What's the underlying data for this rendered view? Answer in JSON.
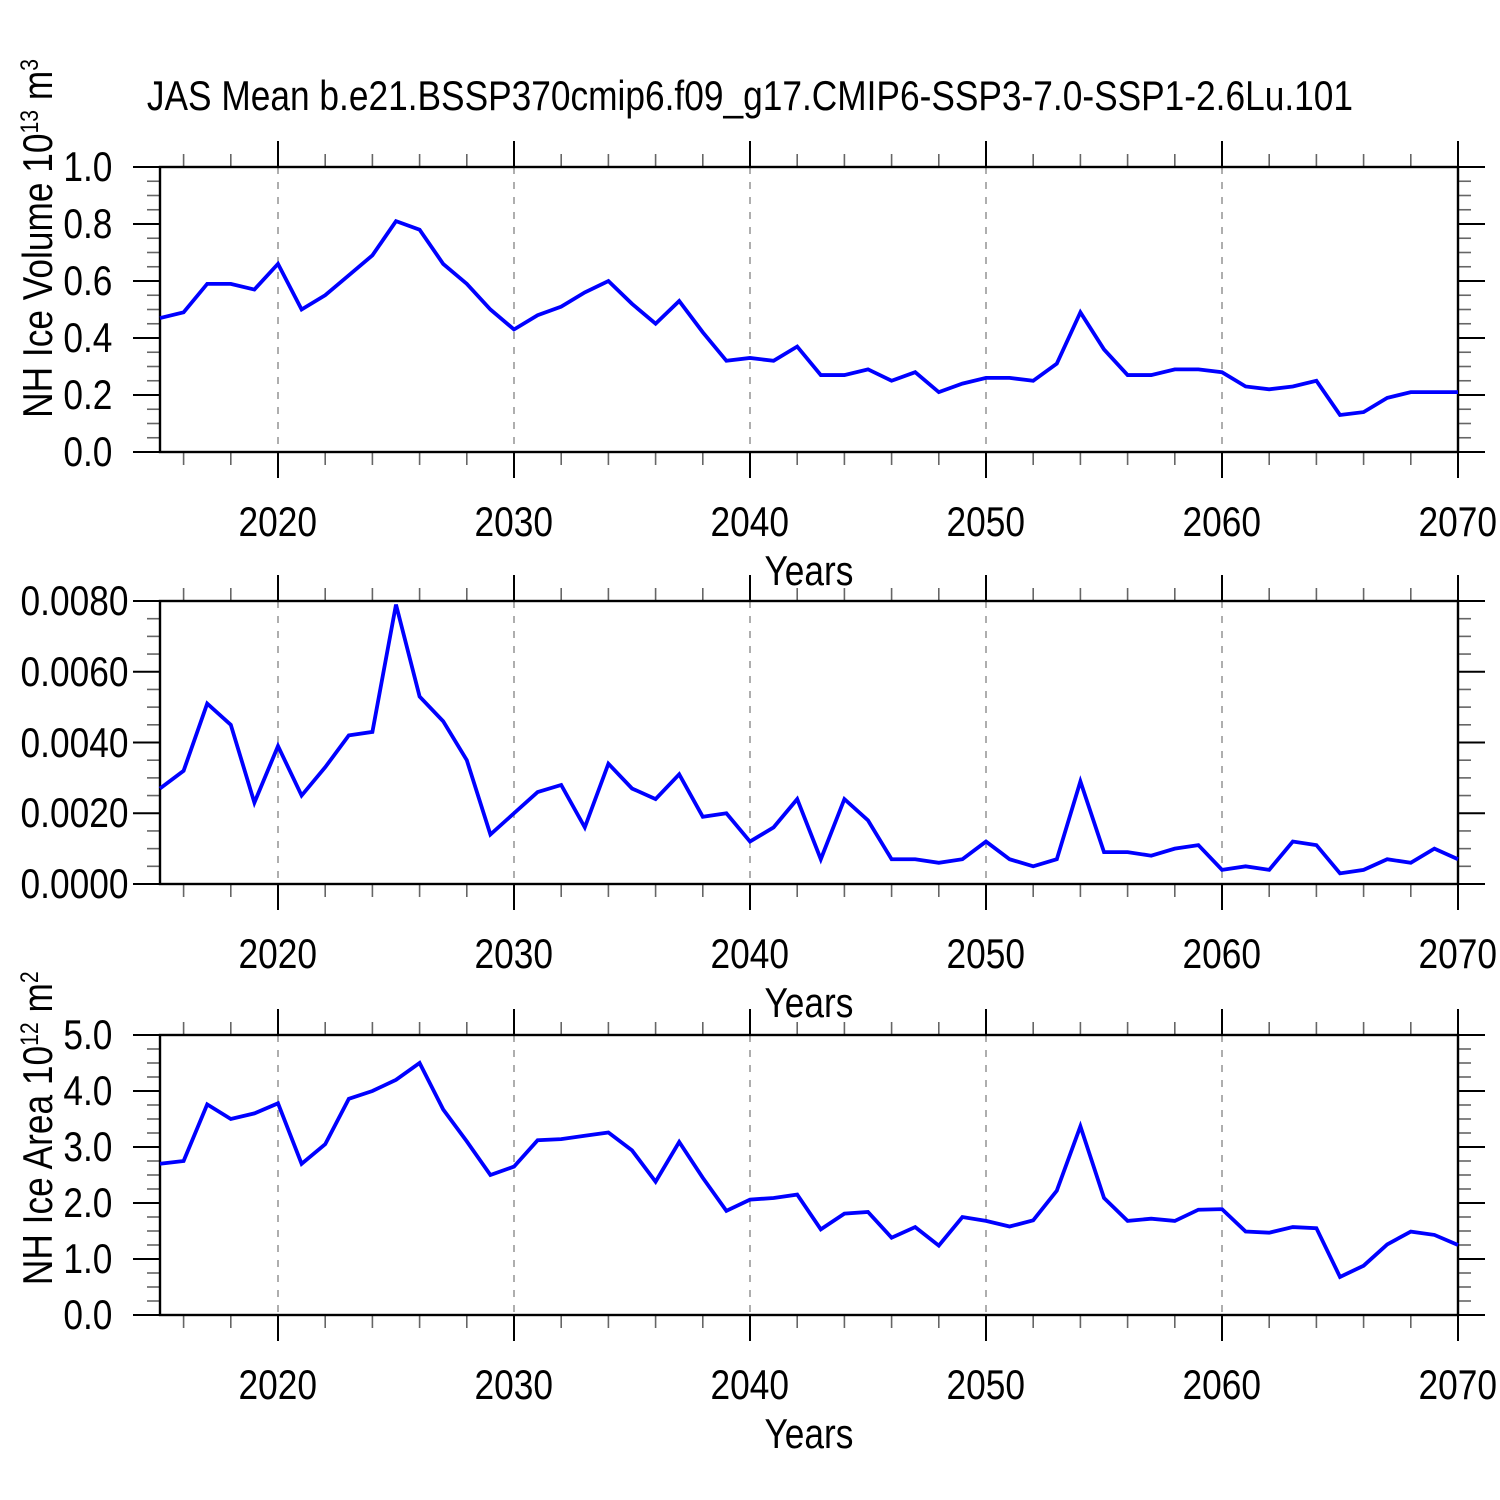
{
  "title": "JAS Mean b.e21.BSSP370cmip6.f09_g17.CMIP6-SSP3-7.0-SSP1-2.6Lu.101",
  "xlabel": "Years",
  "colors": {
    "line": "#0000ff",
    "grid": "#9a9a9a",
    "axis": "#000000",
    "tick_minor": "#666666"
  },
  "chart_data": [
    {
      "type": "line",
      "name": "nh-ice-volume",
      "ylabel": "NH Ice Volume 10^13 m^3",
      "ylabel_parts": [
        {
          "t": "NH Ice Volume 10"
        },
        {
          "t": "13",
          "sup": true
        },
        {
          "t": " m"
        },
        {
          "t": "3",
          "sup": true
        }
      ],
      "xlabel": "Years",
      "xlim": [
        2015,
        2070
      ],
      "ylim": [
        0.0,
        1.0
      ],
      "ytick_values": [
        0.0,
        0.2,
        0.4,
        0.6,
        0.8,
        1.0
      ],
      "ytick_labels": [
        "0.0",
        "0.2",
        "0.4",
        "0.6",
        "0.8",
        "1.0"
      ],
      "y_minor_step": 0.05,
      "xtick_values": [
        2020,
        2030,
        2040,
        2050,
        2060,
        2070
      ],
      "xtick_labels": [
        "2020",
        "2030",
        "2040",
        "2050",
        "2060",
        "2070"
      ],
      "x_minor_step": 2,
      "gridlines_x": [
        2020,
        2030,
        2040,
        2050,
        2060
      ],
      "grid": true,
      "legend": "none",
      "x": [
        2015,
        2016,
        2017,
        2018,
        2019,
        2020,
        2021,
        2022,
        2023,
        2024,
        2025,
        2026,
        2027,
        2028,
        2029,
        2030,
        2031,
        2032,
        2033,
        2034,
        2035,
        2036,
        2037,
        2038,
        2039,
        2040,
        2041,
        2042,
        2043,
        2044,
        2045,
        2046,
        2047,
        2048,
        2049,
        2050,
        2051,
        2052,
        2053,
        2054,
        2055,
        2056,
        2057,
        2058,
        2059,
        2060,
        2061,
        2062,
        2063,
        2064,
        2065,
        2066,
        2067,
        2068,
        2069,
        2070
      ],
      "values": [
        0.47,
        0.49,
        0.59,
        0.59,
        0.57,
        0.66,
        0.5,
        0.55,
        0.62,
        0.69,
        0.81,
        0.78,
        0.66,
        0.59,
        0.5,
        0.43,
        0.48,
        0.51,
        0.56,
        0.6,
        0.52,
        0.45,
        0.53,
        0.42,
        0.32,
        0.33,
        0.32,
        0.37,
        0.27,
        0.27,
        0.29,
        0.25,
        0.28,
        0.21,
        0.24,
        0.26,
        0.26,
        0.25,
        0.31,
        0.49,
        0.36,
        0.27,
        0.27,
        0.29,
        0.29,
        0.28,
        0.23,
        0.22,
        0.23,
        0.25,
        0.13,
        0.14,
        0.19,
        0.21,
        0.21,
        0.21
      ]
    },
    {
      "type": "line",
      "name": "nh-ice-middle-series",
      "ylabel": "",
      "ylabel_parts": [],
      "xlabel": "Years",
      "xlim": [
        2015,
        2070
      ],
      "ylim": [
        0.0,
        0.008
      ],
      "ytick_values": [
        0.0,
        0.002,
        0.004,
        0.006,
        0.008
      ],
      "ytick_labels": [
        "0.0000",
        "0.0020",
        "0.0040",
        "0.0060",
        "0.0080"
      ],
      "y_minor_step": 0.0005,
      "xtick_values": [
        2020,
        2030,
        2040,
        2050,
        2060,
        2070
      ],
      "xtick_labels": [
        "2020",
        "2030",
        "2040",
        "2050",
        "2060",
        "2070"
      ],
      "x_minor_step": 2,
      "gridlines_x": [
        2020,
        2030,
        2040,
        2050,
        2060
      ],
      "grid": true,
      "legend": "none",
      "x": [
        2015,
        2016,
        2017,
        2018,
        2019,
        2020,
        2021,
        2022,
        2023,
        2024,
        2025,
        2026,
        2027,
        2028,
        2029,
        2030,
        2031,
        2032,
        2033,
        2034,
        2035,
        2036,
        2037,
        2038,
        2039,
        2040,
        2041,
        2042,
        2043,
        2044,
        2045,
        2046,
        2047,
        2048,
        2049,
        2050,
        2051,
        2052,
        2053,
        2054,
        2055,
        2056,
        2057,
        2058,
        2059,
        2060,
        2061,
        2062,
        2063,
        2064,
        2065,
        2066,
        2067,
        2068,
        2069,
        2070
      ],
      "values": [
        0.0027,
        0.0032,
        0.0051,
        0.0045,
        0.0023,
        0.0039,
        0.0025,
        0.0033,
        0.0042,
        0.0043,
        0.0079,
        0.0053,
        0.0046,
        0.0035,
        0.0014,
        0.002,
        0.0026,
        0.0028,
        0.0016,
        0.0034,
        0.0027,
        0.0024,
        0.0031,
        0.0019,
        0.002,
        0.0012,
        0.0016,
        0.0024,
        0.0007,
        0.0024,
        0.0018,
        0.0007,
        0.0007,
        0.0006,
        0.0007,
        0.0012,
        0.0007,
        0.0005,
        0.0007,
        0.0029,
        0.0009,
        0.0009,
        0.0008,
        0.001,
        0.0011,
        0.0004,
        0.0005,
        0.0004,
        0.0012,
        0.0011,
        0.0003,
        0.0004,
        0.0007,
        0.0006,
        0.001,
        0.0007
      ]
    },
    {
      "type": "line",
      "name": "nh-ice-area",
      "ylabel": "NH Ice Area 10^12 m^2",
      "ylabel_parts": [
        {
          "t": "NH Ice Area 10"
        },
        {
          "t": "12",
          "sup": true
        },
        {
          "t": " m"
        },
        {
          "t": "2",
          "sup": true
        }
      ],
      "xlabel": "Years",
      "xlim": [
        2015,
        2070
      ],
      "ylim": [
        0.0,
        5.0
      ],
      "ytick_values": [
        0.0,
        1.0,
        2.0,
        3.0,
        4.0,
        5.0
      ],
      "ytick_labels": [
        "0.0",
        "1.0",
        "2.0",
        "3.0",
        "4.0",
        "5.0"
      ],
      "y_minor_step": 0.25,
      "xtick_values": [
        2020,
        2030,
        2040,
        2050,
        2060,
        2070
      ],
      "xtick_labels": [
        "2020",
        "2030",
        "2040",
        "2050",
        "2060",
        "2070"
      ],
      "x_minor_step": 2,
      "gridlines_x": [
        2020,
        2030,
        2040,
        2050,
        2060
      ],
      "grid": true,
      "legend": "none",
      "x": [
        2015,
        2016,
        2017,
        2018,
        2019,
        2020,
        2021,
        2022,
        2023,
        2024,
        2025,
        2026,
        2027,
        2028,
        2029,
        2030,
        2031,
        2032,
        2033,
        2034,
        2035,
        2036,
        2037,
        2038,
        2039,
        2040,
        2041,
        2042,
        2043,
        2044,
        2045,
        2046,
        2047,
        2048,
        2049,
        2050,
        2051,
        2052,
        2053,
        2054,
        2055,
        2056,
        2057,
        2058,
        2059,
        2060,
        2061,
        2062,
        2063,
        2064,
        2065,
        2066,
        2067,
        2068,
        2069,
        2070
      ],
      "values": [
        2.7,
        2.75,
        3.76,
        3.5,
        3.6,
        3.78,
        2.7,
        3.05,
        3.86,
        4.0,
        4.2,
        4.5,
        3.67,
        3.1,
        2.5,
        2.65,
        3.12,
        3.14,
        3.2,
        3.26,
        2.94,
        2.38,
        3.09,
        2.45,
        1.86,
        2.06,
        2.09,
        2.15,
        1.53,
        1.81,
        1.84,
        1.38,
        1.57,
        1.24,
        1.75,
        1.68,
        1.58,
        1.69,
        2.22,
        3.37,
        2.09,
        1.68,
        1.72,
        1.68,
        1.88,
        1.89,
        1.49,
        1.47,
        1.57,
        1.55,
        0.68,
        0.88,
        1.26,
        1.49,
        1.43,
        1.25
      ]
    }
  ]
}
